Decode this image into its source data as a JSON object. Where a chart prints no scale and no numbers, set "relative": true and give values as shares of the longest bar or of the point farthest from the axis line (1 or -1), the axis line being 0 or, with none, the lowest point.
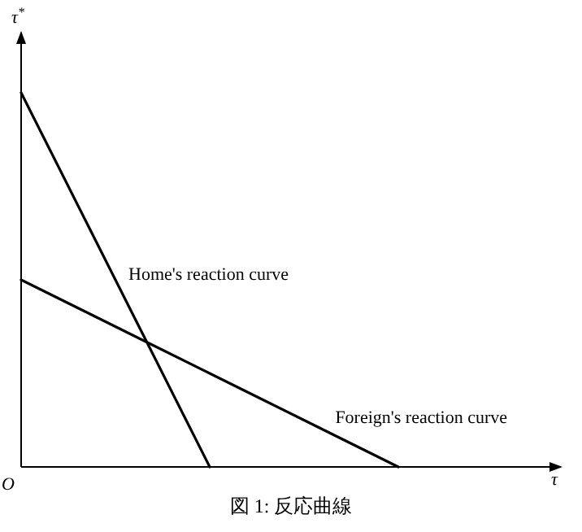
{
  "chart_data": {
    "type": "line",
    "relative": true,
    "ylabel": "τ$^{*}$",
    "annotations": [
      "O",
      "τ",
      "図 1: 反応曲線"
    ],
    "categories": [
      null,
      null,
      null,
      null,
      null
    ],
    "series": [
      {
        "name": "Home's reaction curve",
        "color": "#000000",
        "values": [
          1,
          0.5,
          0,
          null,
          null
        ]
      },
      {
        "name": "Foreign's reaction curve",
        "color": "#000000",
        "values": [
          0.5,
          0.375,
          0.25,
          0.125,
          0
        ]
      }
    ]
  }
}
